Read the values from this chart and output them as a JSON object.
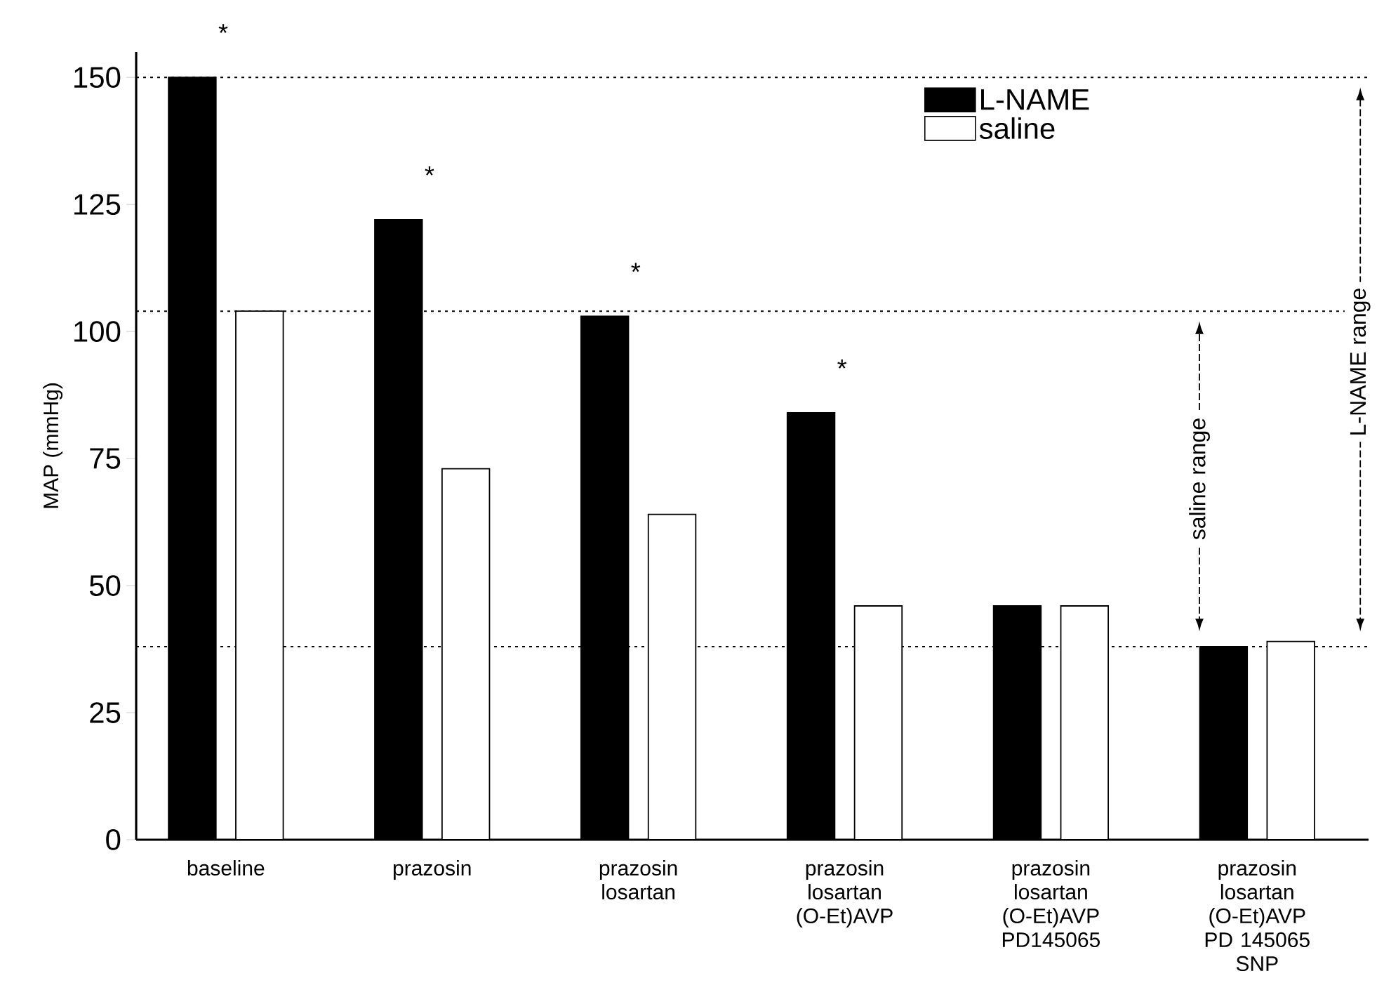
{
  "chart_data": {
    "type": "bar",
    "ylabel": "MAP (mmHg)",
    "categories": [
      "baseline",
      "prazosin",
      "prazosin losartan",
      "prazosin losartan (O-Et)AVP",
      "prazosin losartan (O-Et)AVP PD145065",
      "prazosin losartan (O-Et)AVP PD 145065 SNP"
    ],
    "series": [
      {
        "name": "L-NAME",
        "color": "#000000",
        "values": [
          150,
          122,
          103,
          84,
          46,
          38
        ]
      },
      {
        "name": "saline",
        "color": "#ffffff",
        "values": [
          104,
          73,
          64,
          46,
          46,
          39
        ]
      }
    ],
    "ylim": [
      0,
      155
    ],
    "yticks": [
      0,
      25,
      50,
      75,
      100,
      125,
      150
    ],
    "legend": "top right",
    "ref_lines": [
      {
        "axis": "y",
        "value": 150,
        "line_style": "dotted"
      },
      {
        "axis": "y",
        "value": 104,
        "line_style": "dotted"
      },
      {
        "axis": "y",
        "value": 38,
        "line_style": "dotted"
      }
    ],
    "annotations": [
      "*",
      "*",
      "*",
      "*",
      "saline range",
      "L-NAME range"
    ]
  }
}
